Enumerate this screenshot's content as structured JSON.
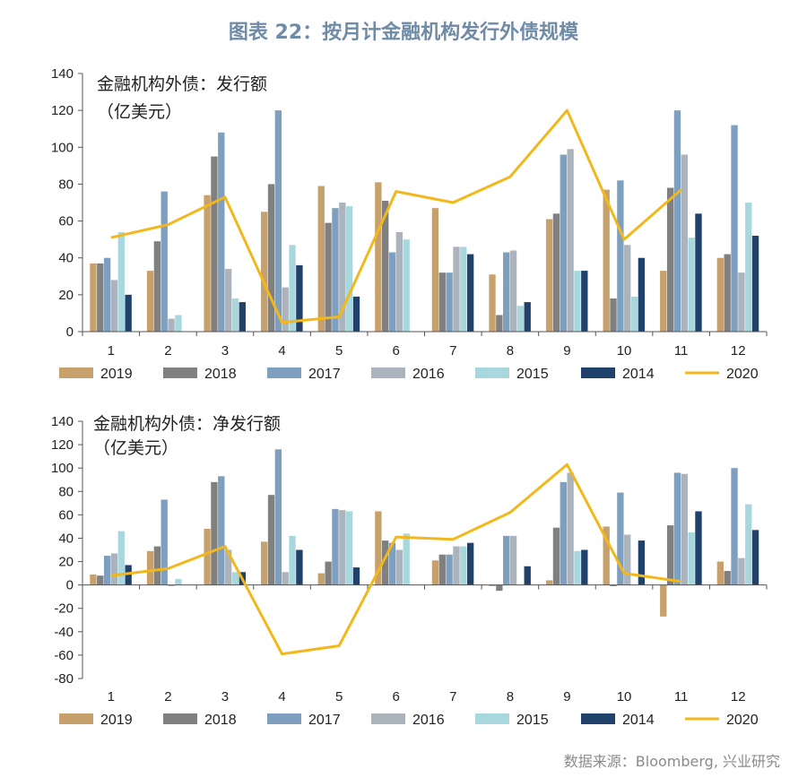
{
  "figure_title": "图表 22：按月计金融机构发行外债规模",
  "source": "数据来源：Bloomberg, 兴业研究",
  "colors": {
    "2019": "#c7a16c",
    "2018": "#808080",
    "2017": "#7e9fbd",
    "2016": "#abb3bd",
    "2015": "#a8d8de",
    "2014": "#20416a",
    "2020": "#f2b81b"
  },
  "chart_data": [
    {
      "type": "bar",
      "title_line1": "金融机构外债：发行额",
      "title_line2": "（亿美元）",
      "categories": [
        "1",
        "2",
        "3",
        "4",
        "5",
        "6",
        "7",
        "8",
        "9",
        "10",
        "11",
        "12"
      ],
      "ylim": [
        0,
        140
      ],
      "yticks": [
        0,
        20,
        40,
        60,
        80,
        100,
        120,
        140
      ],
      "legend_position": "bottom",
      "series": [
        {
          "name": "2019",
          "type": "bar",
          "values": [
            37,
            33,
            74,
            65,
            79,
            81,
            67,
            31,
            61,
            77,
            33,
            40
          ]
        },
        {
          "name": "2018",
          "type": "bar",
          "values": [
            37,
            49,
            95,
            80,
            59,
            71,
            32,
            9,
            64,
            18,
            78,
            42
          ]
        },
        {
          "name": "2017",
          "type": "bar",
          "values": [
            40,
            76,
            108,
            120,
            67,
            43,
            32,
            43,
            96,
            82,
            120,
            112
          ]
        },
        {
          "name": "2016",
          "type": "bar",
          "values": [
            28,
            7,
            34,
            24,
            70,
            54,
            46,
            44,
            99,
            47,
            96,
            32
          ]
        },
        {
          "name": "2015",
          "type": "bar",
          "values": [
            54,
            9,
            18,
            47,
            68,
            50,
            46,
            14,
            33,
            19,
            51,
            70
          ]
        },
        {
          "name": "2014",
          "type": "bar",
          "values": [
            20,
            0,
            16,
            36,
            19,
            0,
            42,
            16,
            33,
            40,
            64,
            52
          ]
        },
        {
          "name": "2020",
          "type": "line",
          "values": [
            51,
            58,
            73,
            5,
            8,
            76,
            70,
            84,
            120,
            50,
            77,
            null
          ]
        }
      ]
    },
    {
      "type": "bar",
      "title_line1": "金融机构外债：净发行额",
      "title_line2": "（亿美元）",
      "categories": [
        "1",
        "2",
        "3",
        "4",
        "5",
        "6",
        "7",
        "8",
        "9",
        "10",
        "11",
        "12"
      ],
      "ylim": [
        -80,
        140
      ],
      "yticks": [
        -80,
        -60,
        -40,
        -20,
        0,
        20,
        40,
        60,
        80,
        100,
        120,
        140
      ],
      "legend_position": "bottom",
      "series": [
        {
          "name": "2019",
          "type": "bar",
          "values": [
            9,
            29,
            48,
            37,
            10,
            63,
            21,
            -1,
            4,
            50,
            -27,
            20
          ]
        },
        {
          "name": "2018",
          "type": "bar",
          "values": [
            8,
            33,
            88,
            77,
            20,
            38,
            26,
            -5,
            49,
            -1,
            51,
            12
          ]
        },
        {
          "name": "2017",
          "type": "bar",
          "values": [
            25,
            73,
            93,
            116,
            65,
            36,
            26,
            42,
            88,
            79,
            96,
            100
          ]
        },
        {
          "name": "2016",
          "type": "bar",
          "values": [
            27,
            -1,
            30,
            11,
            64,
            30,
            33,
            42,
            96,
            43,
            95,
            23
          ]
        },
        {
          "name": "2015",
          "type": "bar",
          "values": [
            46,
            5,
            11,
            42,
            63,
            44,
            33,
            0,
            29,
            0,
            45,
            69
          ]
        },
        {
          "name": "2014",
          "type": "bar",
          "values": [
            17,
            0,
            11,
            30,
            15,
            0,
            36,
            16,
            30,
            38,
            63,
            47
          ]
        },
        {
          "name": "2020",
          "type": "line",
          "values": [
            8,
            14,
            33,
            -59,
            -52,
            41,
            39,
            62,
            103,
            10,
            3,
            null
          ]
        }
      ]
    }
  ]
}
